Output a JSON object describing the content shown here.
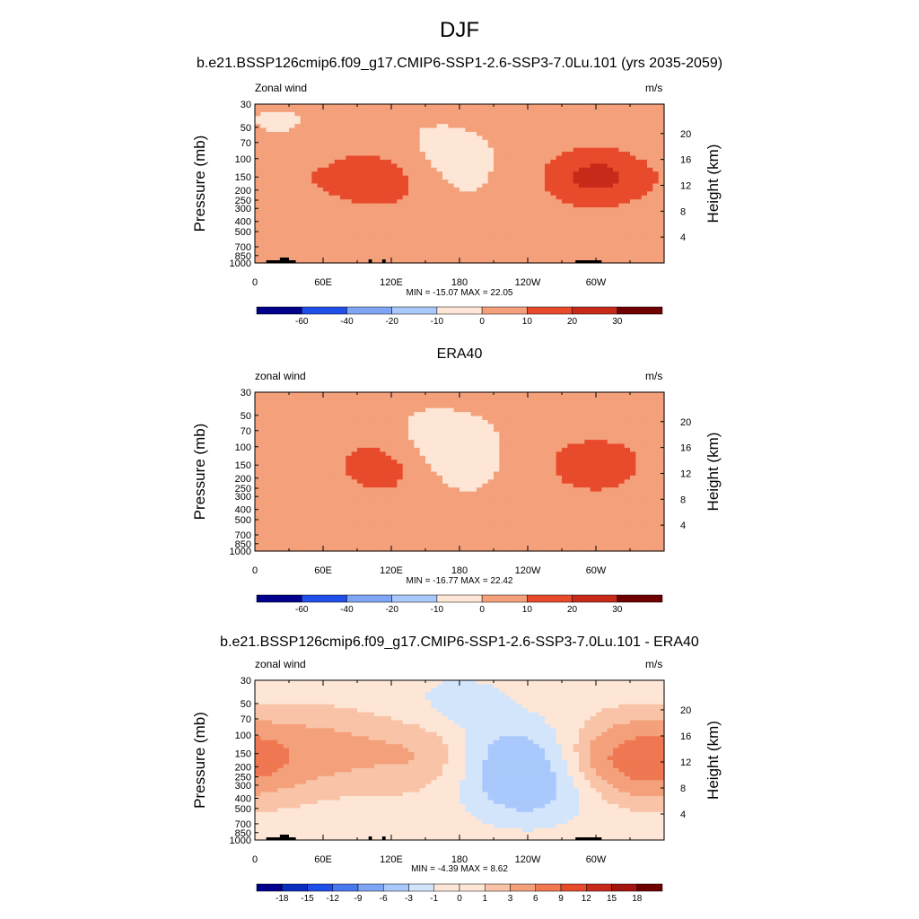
{
  "figure": {
    "title": "DJF",
    "cmap_long": [
      "#00008b",
      "#0a2dc0",
      "#1f4ee8",
      "#4a79ee",
      "#7ea6f5",
      "#a9c8fb",
      "#d3e5fb",
      "#fde6d6",
      "#f8c3a6",
      "#f4a07b",
      "#ef7751",
      "#e84a2c",
      "#c82a1a",
      "#a3150f",
      "#6e0000"
    ],
    "cmap_diff": [
      "#00008b",
      "#0a2dc0",
      "#1f4ee8",
      "#4a79ee",
      "#7ea6f5",
      "#a9c8fb",
      "#d3e5fb",
      "#fde6d6",
      "#f8c3a6",
      "#f4a07b",
      "#ef7751",
      "#e84a2c",
      "#c82a1a",
      "#a3150f",
      "#6e0000"
    ]
  },
  "panels": [
    {
      "title": "b.e21.BSSP126cmip6.f09_g17.CMIP6-SSP1-2.6-SSP3-7.0Lu.101 (yrs 2035-2059)",
      "left_label": "Zonal wind",
      "right_label": "m/s",
      "stats": "MIN = -15.07  MAX =  22.05",
      "colorbar_labels": [
        "-60",
        "-40",
        "-20",
        "-10",
        "0",
        "10",
        "20",
        "30"
      ]
    },
    {
      "title": "ERA40",
      "left_label": "zonal wind",
      "right_label": "m/s",
      "stats": "MIN = -16.77  MAX =  22.42",
      "colorbar_labels": [
        "-60",
        "-40",
        "-20",
        "-10",
        "0",
        "10",
        "20",
        "30"
      ]
    },
    {
      "title": "b.e21.BSSP126cmip6.f09_g17.CMIP6-SSP1-2.6-SSP3-7.0Lu.101 - ERA40",
      "left_label": "zonal wind",
      "right_label": "m/s",
      "stats": "MIN =  -4.39  MAX =   8.62",
      "colorbar_labels": [
        "-18",
        "-15",
        "-12",
        "-9",
        "-6",
        "-3",
        "-1",
        "0",
        "1",
        "3",
        "6",
        "9",
        "12",
        "15",
        "18"
      ]
    }
  ],
  "chart_data": [
    {
      "type": "heatmap",
      "title": "b.e21.BSSP126cmip6.f09_g17.CMIP6-SSP1-2.6-SSP3-7.0Lu.101 (yrs 2035-2059)",
      "variable": "Zonal wind",
      "units": "m/s",
      "ylabel": "Pressure (mb)",
      "ylabel_right": "Height (km)",
      "x_ticks": [
        "0",
        "60E",
        "120E",
        "180",
        "120W",
        "60W"
      ],
      "y_ticks": [
        "30",
        "50",
        "70",
        "100",
        "150",
        "200",
        "250",
        "300",
        "400",
        "500",
        "700",
        "850",
        "1000"
      ],
      "y_right_ticks": [
        "4",
        "8",
        "12",
        "16",
        "20"
      ],
      "contour_levels": [
        -60,
        -40,
        -20,
        -10,
        0,
        10,
        20,
        30
      ],
      "min": -15.07,
      "max": 22.05,
      "features": [
        {
          "lon": 117,
          "p": 150,
          "value": 22
        },
        {
          "lon": 300,
          "p": 150,
          "value": 22
        },
        {
          "lon": 40,
          "p": 150,
          "value": 6
        },
        {
          "lon": 145,
          "p": 125,
          "value": -12
        },
        {
          "lon": 95,
          "p": 850,
          "value": 7
        },
        {
          "lon": 250,
          "p": 850,
          "value": 7
        },
        {
          "lon": 20,
          "p": 60,
          "value": -2
        }
      ]
    },
    {
      "type": "heatmap",
      "title": "ERA40",
      "variable": "zonal wind",
      "units": "m/s",
      "ylabel": "Pressure (mb)",
      "ylabel_right": "Height (km)",
      "x_ticks": [
        "0",
        "60E",
        "120E",
        "180",
        "120W",
        "60W"
      ],
      "y_ticks": [
        "30",
        "50",
        "70",
        "100",
        "150",
        "200",
        "250",
        "300",
        "400",
        "500",
        "700",
        "850",
        "1000"
      ],
      "y_right_ticks": [
        "4",
        "8",
        "12",
        "16",
        "20"
      ],
      "contour_levels": [
        -60,
        -40,
        -20,
        -10,
        0,
        10,
        20,
        30
      ],
      "min": -16.77,
      "max": 22.42,
      "features": [
        {
          "lon": 117,
          "p": 150,
          "value": 22
        },
        {
          "lon": 300,
          "p": 150,
          "value": 16
        },
        {
          "lon": 148,
          "p": 125,
          "value": -15
        },
        {
          "lon": 60,
          "p": 200,
          "value": -2
        },
        {
          "lon": 95,
          "p": 850,
          "value": 6
        },
        {
          "lon": 250,
          "p": 850,
          "value": 5
        }
      ]
    },
    {
      "type": "heatmap",
      "title": "b.e21.BSSP126cmip6.f09_g17.CMIP6-SSP1-2.6-SSP3-7.0Lu.101 - ERA40",
      "variable": "zonal wind",
      "units": "m/s",
      "ylabel": "Pressure (mb)",
      "ylabel_right": "Height (km)",
      "x_ticks": [
        "0",
        "60E",
        "120E",
        "180",
        "120W",
        "60W"
      ],
      "y_ticks": [
        "30",
        "50",
        "70",
        "100",
        "150",
        "200",
        "250",
        "300",
        "400",
        "500",
        "700",
        "850",
        "1000"
      ],
      "y_right_ticks": [
        "4",
        "8",
        "12",
        "16",
        "20"
      ],
      "contour_levels": [
        -18,
        -15,
        -12,
        -9,
        -6,
        -3,
        -1,
        0,
        1,
        3,
        6,
        9,
        12,
        15,
        18
      ],
      "min": -4.39,
      "max": 8.62,
      "features": [
        {
          "lon": 340,
          "p": 170,
          "value": 8
        },
        {
          "lon": 60,
          "p": 140,
          "value": 3
        },
        {
          "lon": 150,
          "p": 150,
          "value": 3
        },
        {
          "lon": 225,
          "p": 150,
          "value": -4
        },
        {
          "lon": 240,
          "p": 350,
          "value": -4
        },
        {
          "lon": 180,
          "p": 50,
          "value": -2
        }
      ]
    }
  ]
}
